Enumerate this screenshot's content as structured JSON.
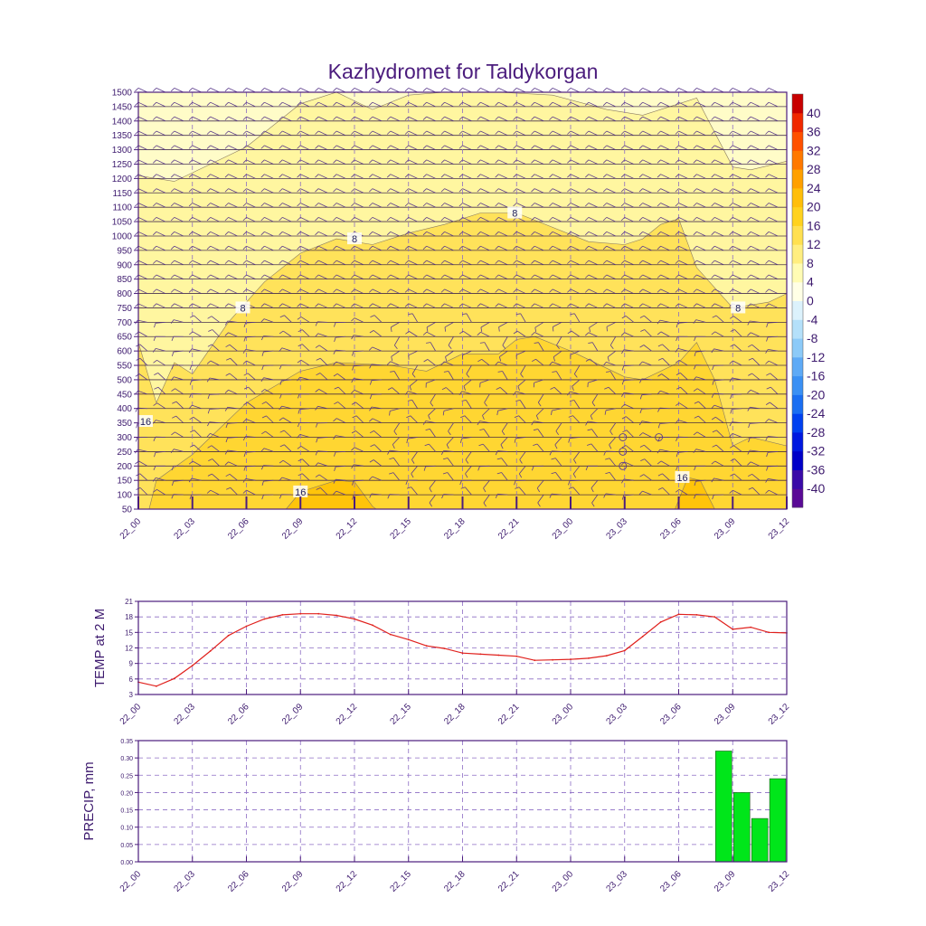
{
  "title": "Kazhydromet for Taldykorgan",
  "x_labels": [
    "22_00",
    "22_03",
    "22_06",
    "22_09",
    "22_12",
    "22_15",
    "22_18",
    "22_21",
    "23_00",
    "23_03",
    "23_06",
    "23_09",
    "23_12"
  ],
  "colors": {
    "axis": "#4b1c7d",
    "grid": "#8c6cc4",
    "contour_line": "#8a7a60",
    "temp_line": "#e0201c",
    "precip_bar": "#00e61a",
    "barb": "#5b3b8c"
  },
  "chart_data": [
    {
      "name": "profile",
      "type": "heatmap",
      "title": "Kazhydromet for Taldykorgan",
      "y_unit": "m",
      "ylim": [
        50,
        1500
      ],
      "y_ticks": [
        50,
        100,
        150,
        200,
        250,
        300,
        350,
        400,
        450,
        500,
        550,
        600,
        650,
        700,
        750,
        800,
        850,
        900,
        950,
        1000,
        1050,
        1100,
        1150,
        1200,
        1250,
        1300,
        1350,
        1400,
        1450,
        1500
      ],
      "x_hours": [
        0,
        3,
        6,
        9,
        12,
        15,
        18,
        21,
        24,
        27,
        30,
        33,
        36
      ],
      "colorbar": {
        "labels": [
          40,
          36,
          32,
          28,
          24,
          20,
          16,
          12,
          8,
          4,
          0,
          -4,
          -8,
          -12,
          -16,
          -20,
          -24,
          -28,
          -32,
          -36,
          -40
        ],
        "bands": [
          {
            "from": -44,
            "to": -40,
            "color": "#5a0a96"
          },
          {
            "from": -40,
            "to": -36,
            "color": "#3a0aa8"
          },
          {
            "from": -36,
            "to": -32,
            "color": "#0000c8"
          },
          {
            "from": -32,
            "to": -28,
            "color": "#0018e0"
          },
          {
            "from": -28,
            "to": -24,
            "color": "#0040f0"
          },
          {
            "from": -24,
            "to": -20,
            "color": "#1a6ef2"
          },
          {
            "from": -20,
            "to": -16,
            "color": "#3a90f4"
          },
          {
            "from": -16,
            "to": -12,
            "color": "#5eaaf6"
          },
          {
            "from": -12,
            "to": -8,
            "color": "#8ccaf8"
          },
          {
            "from": -8,
            "to": -4,
            "color": "#b4e0fa"
          },
          {
            "from": -4,
            "to": 0,
            "color": "#dcf2fc"
          },
          {
            "from": 0,
            "to": 4,
            "color": "#ffffe6"
          },
          {
            "from": 4,
            "to": 8,
            "color": "#fffcb4"
          },
          {
            "from": 8,
            "to": 12,
            "color": "#ffee80"
          },
          {
            "from": 12,
            "to": 16,
            "color": "#ffe050"
          },
          {
            "from": 16,
            "to": 20,
            "color": "#ffd21e"
          },
          {
            "from": 20,
            "to": 24,
            "color": "#ffbe0a"
          },
          {
            "from": 24,
            "to": 28,
            "color": "#ffa000"
          },
          {
            "from": 28,
            "to": 32,
            "color": "#ff7800"
          },
          {
            "from": 32,
            "to": 36,
            "color": "#ff5000"
          },
          {
            "from": 36,
            "to": 40,
            "color": "#f02800"
          },
          {
            "from": 40,
            "to": 44,
            "color": "#c80000"
          }
        ]
      },
      "regions": [
        {
          "band": "8-12",
          "color": "#fff6a0",
          "points": [
            [
              0,
              50
            ],
            [
              0,
              1210
            ],
            [
              2,
              1190
            ],
            [
              4,
              1250
            ],
            [
              6,
              1310
            ],
            [
              9,
              1460
            ],
            [
              11,
              1500
            ],
            [
              13,
              1440
            ],
            [
              15,
              1490
            ],
            [
              17,
              1500
            ],
            [
              20,
              1500
            ],
            [
              23,
              1490
            ],
            [
              26,
              1440
            ],
            [
              28,
              1420
            ],
            [
              31,
              1480
            ],
            [
              33,
              1240
            ],
            [
              34,
              1230
            ],
            [
              36,
              1260
            ],
            [
              36,
              50
            ]
          ]
        },
        {
          "band": "12-16",
          "color": "#ffe25a",
          "points": [
            [
              0,
              50
            ],
            [
              0,
              630
            ],
            [
              1,
              420
            ],
            [
              2,
              560
            ],
            [
              3,
              520
            ],
            [
              5,
              700
            ],
            [
              7,
              840
            ],
            [
              9,
              940
            ],
            [
              11,
              990
            ],
            [
              13,
              970
            ],
            [
              15,
              1010
            ],
            [
              17,
              1040
            ],
            [
              19,
              1080
            ],
            [
              21,
              1080
            ],
            [
              23,
              1030
            ],
            [
              25,
              980
            ],
            [
              27,
              970
            ],
            [
              28,
              990
            ],
            [
              29,
              1040
            ],
            [
              30,
              1060
            ],
            [
              31,
              890
            ],
            [
              33,
              750
            ],
            [
              34,
              760
            ],
            [
              35,
              770
            ],
            [
              36,
              800
            ],
            [
              36,
              50
            ]
          ]
        },
        {
          "band": "16-20",
          "color": "#ffd632",
          "points": [
            [
              0.6,
              50
            ],
            [
              1,
              150
            ],
            [
              3,
              240
            ],
            [
              6,
              420
            ],
            [
              9,
              530
            ],
            [
              11,
              560
            ],
            [
              14,
              550
            ],
            [
              16,
              530
            ],
            [
              18,
              590
            ],
            [
              20,
              590
            ],
            [
              21,
              640
            ],
            [
              22,
              650
            ],
            [
              24,
              600
            ],
            [
              26,
              540
            ],
            [
              27,
              510
            ],
            [
              28,
              500
            ],
            [
              30,
              560
            ],
            [
              31,
              630
            ],
            [
              32,
              500
            ],
            [
              33,
              270
            ],
            [
              34,
              300
            ],
            [
              36,
              270
            ],
            [
              36,
              50
            ]
          ]
        },
        {
          "band": "20-24",
          "color": "#ffc40a",
          "points": [
            [
              8.2,
              50
            ],
            [
              9,
              110
            ],
            [
              11,
              150
            ],
            [
              12,
              145
            ],
            [
              13,
              60
            ],
            [
              13.2,
              50
            ]
          ]
        },
        {
          "band": "20-24",
          "color": "#ffc40a",
          "points": [
            [
              29.8,
              50
            ],
            [
              30.5,
              160
            ],
            [
              31.2,
              150
            ],
            [
              32,
              50
            ]
          ]
        }
      ],
      "contour_labels": [
        {
          "x": 5.8,
          "y": 750,
          "text": "8"
        },
        {
          "x": 12,
          "y": 990,
          "text": "8"
        },
        {
          "x": 20.9,
          "y": 1080,
          "text": "8"
        },
        {
          "x": 33.3,
          "y": 750,
          "text": "8"
        },
        {
          "x": 0.4,
          "y": 355,
          "text": "16"
        },
        {
          "x": 9,
          "y": 110,
          "text": "16"
        },
        {
          "x": 30.2,
          "y": 160,
          "text": "16"
        }
      ],
      "calm_marks": [
        [
          26.9,
          300
        ],
        [
          26.9,
          250
        ],
        [
          26.9,
          200
        ],
        [
          28.9,
          300
        ]
      ]
    },
    {
      "name": "temperature",
      "type": "line",
      "ylabel": "TEMP at 2 M",
      "ylim": [
        3,
        21
      ],
      "y_ticks": [
        3,
        6,
        9,
        12,
        15,
        18,
        21
      ],
      "x": [
        0,
        1,
        2,
        3,
        4,
        5,
        6,
        7,
        8,
        9,
        10,
        11,
        12,
        13,
        14,
        15,
        16,
        17,
        18,
        19,
        20,
        21,
        22,
        23,
        24,
        25,
        26,
        27,
        28,
        29,
        30,
        31,
        32,
        33,
        34,
        35,
        36
      ],
      "values": [
        5.4,
        4.6,
        6.1,
        8.6,
        11.4,
        14.4,
        16.2,
        17.6,
        18.4,
        18.6,
        18.6,
        18.3,
        17.6,
        16.4,
        14.6,
        13.6,
        12.4,
        11.9,
        11.0,
        10.8,
        10.6,
        10.4,
        9.6,
        9.7,
        9.8,
        10.0,
        10.5,
        11.5,
        14.2,
        17.0,
        18.5,
        18.4,
        18.0,
        15.6,
        16.0,
        15.0,
        14.9
      ]
    },
    {
      "name": "precipitation",
      "type": "bar",
      "ylabel": "PRECIP, mm",
      "ylim": [
        0,
        0.35
      ],
      "y_ticks": [
        "0.00",
        "0.05",
        "0.10",
        "0.15",
        "0.20",
        "0.25",
        "0.30",
        "0.35"
      ],
      "bars": [
        {
          "x": 33,
          "value": 0.32
        },
        {
          "x": 34,
          "value": 0.2
        },
        {
          "x": 35,
          "value": 0.125
        },
        {
          "x": 36,
          "value": 0.24
        }
      ]
    }
  ]
}
